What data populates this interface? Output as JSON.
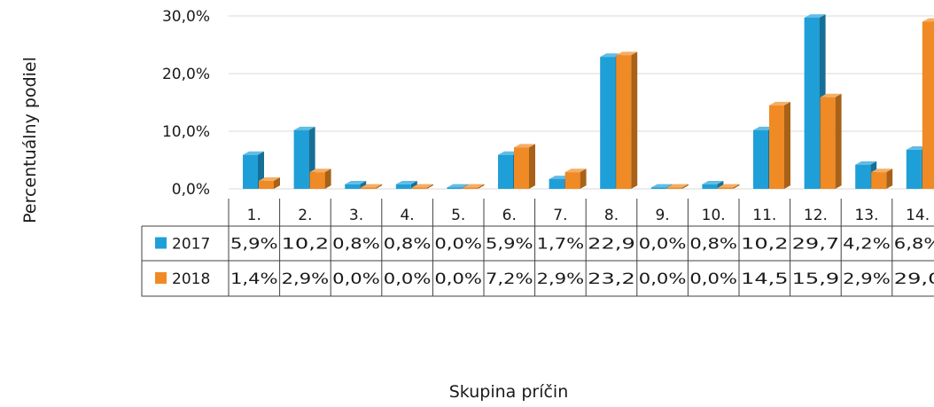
{
  "chart_data": {
    "type": "bar",
    "title": "",
    "ylabel": "Percentuálny podiel",
    "xlabel": "Skupina príčin",
    "ylim": [
      0,
      30
    ],
    "yticks": [
      "0,0%",
      "10,0%",
      "20,0%",
      "30,0%"
    ],
    "grid": true,
    "categories": [
      "1.",
      "2.",
      "3.",
      "4.",
      "5.",
      "6.",
      "7.",
      "8.",
      "9.",
      "10.",
      "11.",
      "12.",
      "13.",
      "14."
    ],
    "series": [
      {
        "name": "2017",
        "color": "#1f9fd8",
        "values": [
          5.9,
          10.2,
          0.8,
          0.8,
          0.0,
          5.9,
          1.7,
          22.9,
          0.0,
          0.8,
          10.2,
          29.7,
          4.2,
          6.8
        ],
        "labels": [
          "5,9%",
          "10,2",
          "0,8%",
          "0,8%",
          "0,0%",
          "5,9%",
          "1,7%",
          "22,9",
          "0,0%",
          "0,8%",
          "10,2",
          "29,7",
          "4,2%",
          "6,8%"
        ]
      },
      {
        "name": "2018",
        "color": "#f08a24",
        "values": [
          1.4,
          2.9,
          0.0,
          0.0,
          0.0,
          7.2,
          2.9,
          23.2,
          0.0,
          0.0,
          14.5,
          15.9,
          2.9,
          29.0
        ],
        "labels": [
          "1,4%",
          "2,9%",
          "0,0%",
          "0,0%",
          "0,0%",
          "7,2%",
          "2,9%",
          "23,2",
          "0,0%",
          "0,0%",
          "14,5",
          "15,9",
          "2,9%",
          "29,0"
        ]
      }
    ]
  }
}
